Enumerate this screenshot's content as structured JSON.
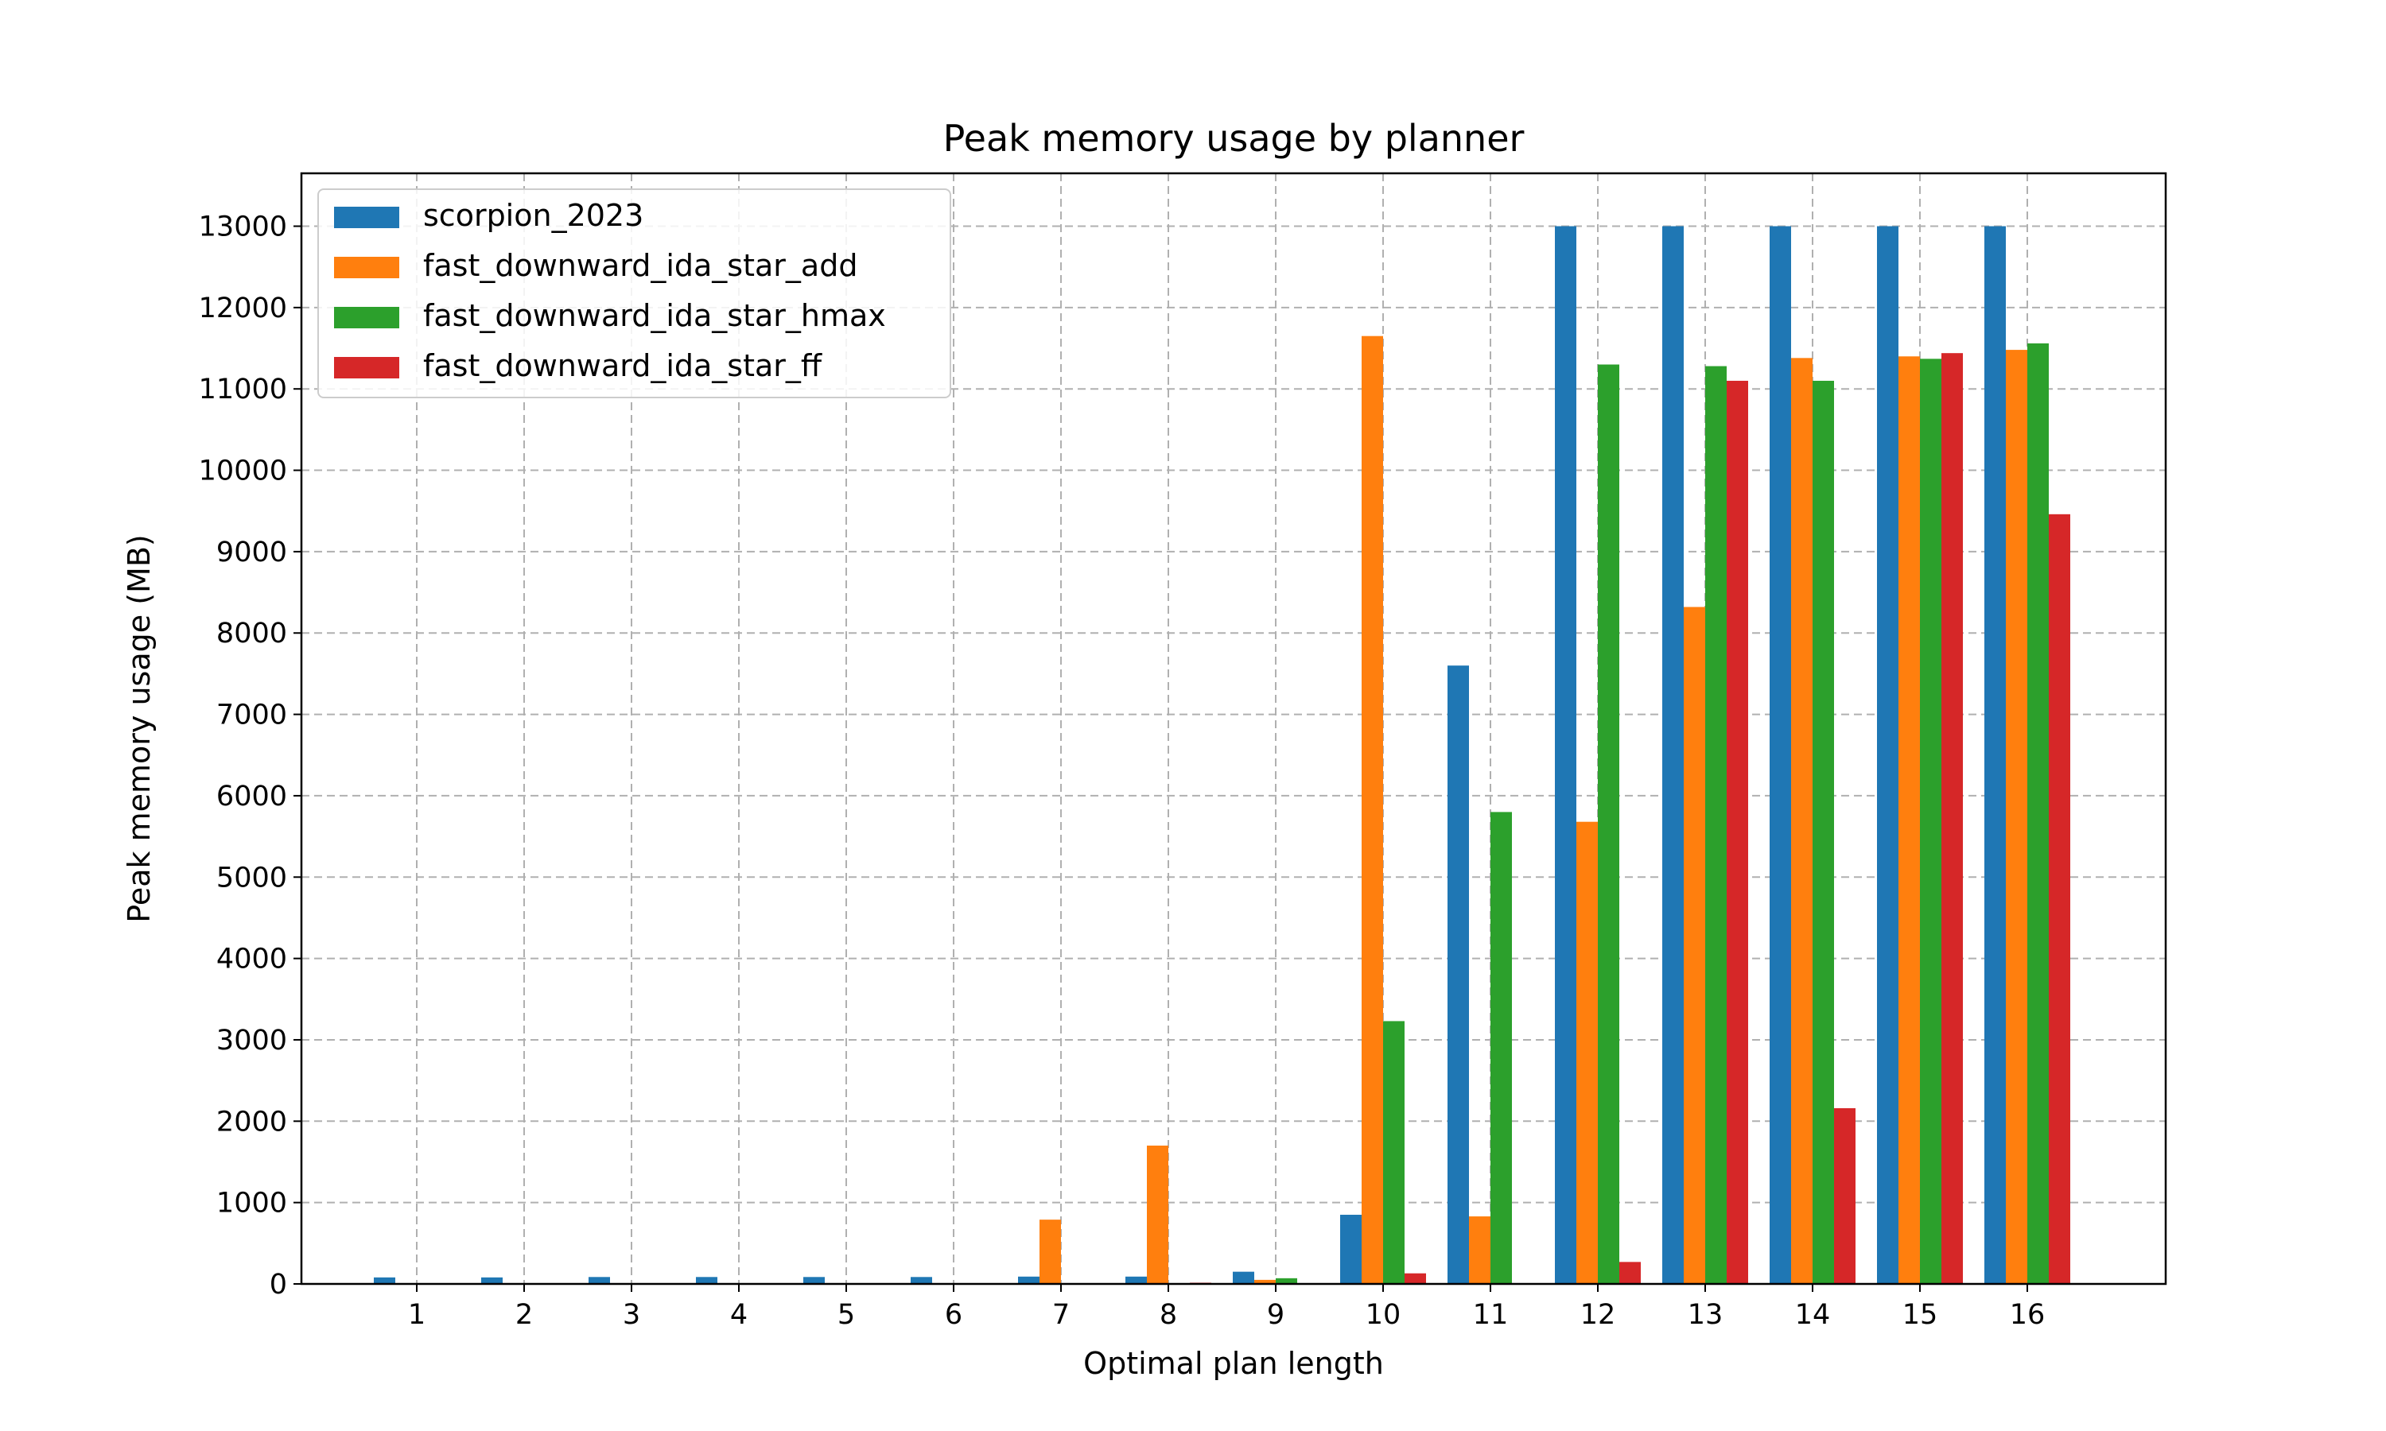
{
  "chart_data": {
    "type": "bar",
    "title": "Peak memory usage by planner",
    "xlabel": "Optimal plan length",
    "ylabel": "Peak memory usage (MB)",
    "categories": [
      "1",
      "2",
      "3",
      "4",
      "5",
      "6",
      "7",
      "8",
      "9",
      "10",
      "11",
      "12",
      "13",
      "14",
      "15",
      "16"
    ],
    "ylim": [
      0,
      13650
    ],
    "yticks": [
      0,
      1000,
      2000,
      3000,
      4000,
      5000,
      6000,
      7000,
      8000,
      9000,
      10000,
      11000,
      12000,
      13000
    ],
    "grid": true,
    "legend_position": "top-left",
    "series": [
      {
        "name": "scorpion_2023",
        "color": "#1f77b4",
        "values": [
          80,
          80,
          85,
          85,
          85,
          85,
          90,
          90,
          150,
          850,
          7600,
          13000,
          13000,
          13000,
          13000,
          13000
        ]
      },
      {
        "name": "fast_downward_ida_star_add",
        "color": "#ff7f0e",
        "values": [
          0,
          0,
          0,
          0,
          0,
          0,
          790,
          1700,
          50,
          11650,
          830,
          5680,
          8320,
          11380,
          11400,
          11480
        ]
      },
      {
        "name": "fast_downward_ida_star_hmax",
        "color": "#2ca02c",
        "values": [
          0,
          0,
          0,
          0,
          0,
          0,
          0,
          0,
          70,
          3230,
          5800,
          11300,
          11280,
          11100,
          11370,
          11560
        ]
      },
      {
        "name": "fast_downward_ida_star_ff",
        "color": "#d62728",
        "values": [
          0,
          0,
          0,
          0,
          0,
          0,
          0,
          15,
          0,
          130,
          0,
          270,
          11100,
          2160,
          11440,
          9460
        ]
      }
    ]
  }
}
